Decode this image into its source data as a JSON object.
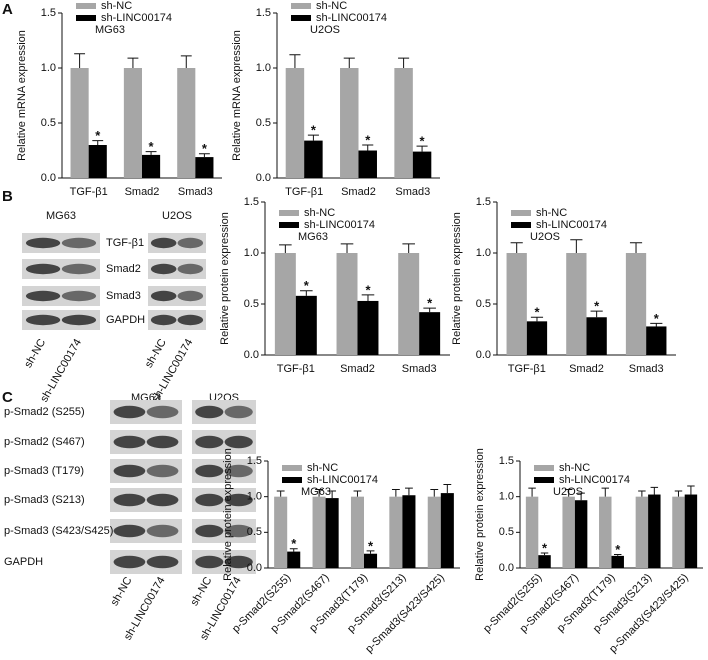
{
  "panels": [
    {
      "label": "A"
    },
    {
      "label": "B",
      "blots": [
        {
          "cell_line": "MG63"
        },
        {
          "cell_line": "U2OS"
        }
      ],
      "bands": [
        "TGF-β1",
        "Smad2",
        "Smad3",
        "GAPDH"
      ],
      "lanes": [
        "sh-NC",
        "sh-LINC00174"
      ]
    },
    {
      "label": "C",
      "blots": [
        {
          "cell_line": "MG63"
        },
        {
          "cell_line": "U2OS"
        }
      ],
      "bands": [
        "p-Smad2 (S255)",
        "p-Smad2 (S467)",
        "p-Smad3 (T179)",
        "p-Smad3 (S213)",
        "p-Smad3 (S423/S425)",
        "GAPDH"
      ],
      "lanes": [
        "sh-NC",
        "sh-LINC00174"
      ]
    }
  ],
  "chart_data": [
    {
      "type": "bar",
      "annotation": "MG63",
      "ylabel": "Relative mRNA expression",
      "categories": [
        "TGF-β1",
        "Smad2",
        "Smad3"
      ],
      "series": [
        {
          "name": "sh-NC",
          "color": "#a6a6a6",
          "values": [
            1,
            1,
            1
          ],
          "errors": [
            0.13,
            0.09,
            0.11
          ]
        },
        {
          "name": "sh-LINC00174",
          "color": "#000000",
          "values": [
            0.3,
            0.21,
            0.19
          ],
          "errors": [
            0.04,
            0.03,
            0.03
          ],
          "annotations": [
            "*",
            "*",
            "*"
          ]
        }
      ],
      "ylim": [
        0,
        1.5
      ],
      "yticks": [
        {
          "value": 0,
          "label": "0.0"
        },
        0.5,
        {
          "value": 1,
          "label": "1.0"
        },
        1.5
      ],
      "legend": "upper left",
      "xtick_rotation": 0
    },
    {
      "type": "bar",
      "annotation": "U2OS",
      "ylabel": "Relative mRNA expression",
      "categories": [
        "TGF-β1",
        "Smad2",
        "Smad3"
      ],
      "series": [
        {
          "name": "sh-NC",
          "color": "#a6a6a6",
          "values": [
            1,
            1,
            1
          ],
          "errors": [
            0.12,
            0.09,
            0.09
          ]
        },
        {
          "name": "sh-LINC00174",
          "color": "#000000",
          "values": [
            0.34,
            0.25,
            0.24
          ],
          "errors": [
            0.05,
            0.05,
            0.05
          ],
          "annotations": [
            "*",
            "*",
            "*"
          ]
        }
      ],
      "ylim": [
        0,
        1.5
      ],
      "yticks": [
        {
          "value": 0,
          "label": "0.0"
        },
        0.5,
        {
          "value": 1,
          "label": "1.0"
        },
        1.5
      ],
      "legend": "upper left",
      "xtick_rotation": 0
    },
    {
      "type": "bar",
      "annotation": "MG63",
      "ylabel": "Relative protein expression",
      "categories": [
        "TGF-β1",
        "Smad2",
        "Smad3"
      ],
      "series": [
        {
          "name": "sh-NC",
          "color": "#a6a6a6",
          "values": [
            1,
            1,
            1
          ],
          "errors": [
            0.08,
            0.09,
            0.09
          ]
        },
        {
          "name": "sh-LINC00174",
          "color": "#000000",
          "values": [
            0.58,
            0.53,
            0.42
          ],
          "errors": [
            0.05,
            0.06,
            0.04
          ],
          "annotations": [
            "*",
            "*",
            "*"
          ]
        }
      ],
      "ylim": [
        0,
        1.5
      ],
      "yticks": [
        {
          "value": 0,
          "label": "0.0"
        },
        0.5,
        {
          "value": 1,
          "label": "1.0"
        },
        1.5
      ],
      "legend": "upper left",
      "xtick_rotation": 0
    },
    {
      "type": "bar",
      "annotation": "U2OS",
      "ylabel": "Relative protein expression",
      "categories": [
        "TGF-β1",
        "Smad2",
        "Smad3"
      ],
      "series": [
        {
          "name": "sh-NC",
          "color": "#a6a6a6",
          "values": [
            1,
            1,
            1
          ],
          "errors": [
            0.1,
            0.13,
            0.1
          ]
        },
        {
          "name": "sh-LINC00174",
          "color": "#000000",
          "values": [
            0.33,
            0.37,
            0.28
          ],
          "errors": [
            0.04,
            0.06,
            0.03
          ],
          "annotations": [
            "*",
            "*",
            "*"
          ]
        }
      ],
      "ylim": [
        0,
        1.5
      ],
      "yticks": [
        {
          "value": 0,
          "label": "0.0"
        },
        0.5,
        {
          "value": 1,
          "label": "1.0"
        },
        1.5
      ],
      "legend": "upper left",
      "xtick_rotation": 0
    },
    {
      "type": "bar",
      "annotation": "MG63",
      "ylabel": "Relative protein expression",
      "categories": [
        "p-Smad2(S255)",
        "p-Smad2(S467)",
        "p-Smad3(T179)",
        "p-Smad3(S213)",
        "p-Smad3(S423/S425)"
      ],
      "series": [
        {
          "name": "sh-NC",
          "color": "#a6a6a6",
          "values": [
            1,
            1,
            1,
            1,
            1
          ],
          "errors": [
            0.08,
            0.1,
            0.08,
            0.1,
            0.1
          ]
        },
        {
          "name": "sh-LINC00174",
          "color": "#000000",
          "values": [
            0.23,
            0.98,
            0.2,
            1.02,
            1.05
          ],
          "errors": [
            0.04,
            0.1,
            0.04,
            0.1,
            0.12
          ],
          "annotations": [
            "*",
            null,
            "*",
            null,
            null
          ]
        }
      ],
      "ylim": [
        0,
        1.5
      ],
      "yticks": [
        {
          "value": 0,
          "label": "0.0"
        },
        0.5,
        {
          "value": 1,
          "label": "1.0"
        },
        1.5
      ],
      "legend": "upper left",
      "xtick_rotation": 45
    },
    {
      "type": "bar",
      "annotation": "U2OS",
      "ylabel": "Relative protein expression",
      "categories": [
        "p-Smad2(S255)",
        "p-Smad2(S467)",
        "p-Smad3(T179)",
        "p-Smad3(S213)",
        "p-Smad3(S423/S425)"
      ],
      "series": [
        {
          "name": "sh-NC",
          "color": "#a6a6a6",
          "values": [
            1,
            1,
            1,
            1,
            1
          ],
          "errors": [
            0.12,
            0.1,
            0.12,
            0.08,
            0.08
          ]
        },
        {
          "name": "sh-LINC00174",
          "color": "#000000",
          "values": [
            0.18,
            0.95,
            0.17,
            1.03,
            1.03
          ],
          "errors": [
            0.03,
            0.1,
            0.02,
            0.1,
            0.12
          ],
          "annotations": [
            "*",
            null,
            "*",
            null,
            null
          ]
        }
      ],
      "ylim": [
        0,
        1.5
      ],
      "yticks": [
        {
          "value": 0,
          "label": "0.0"
        },
        0.5,
        {
          "value": 1,
          "label": "1.0"
        },
        1.5
      ],
      "legend": "upper left",
      "xtick_rotation": 45
    }
  ]
}
